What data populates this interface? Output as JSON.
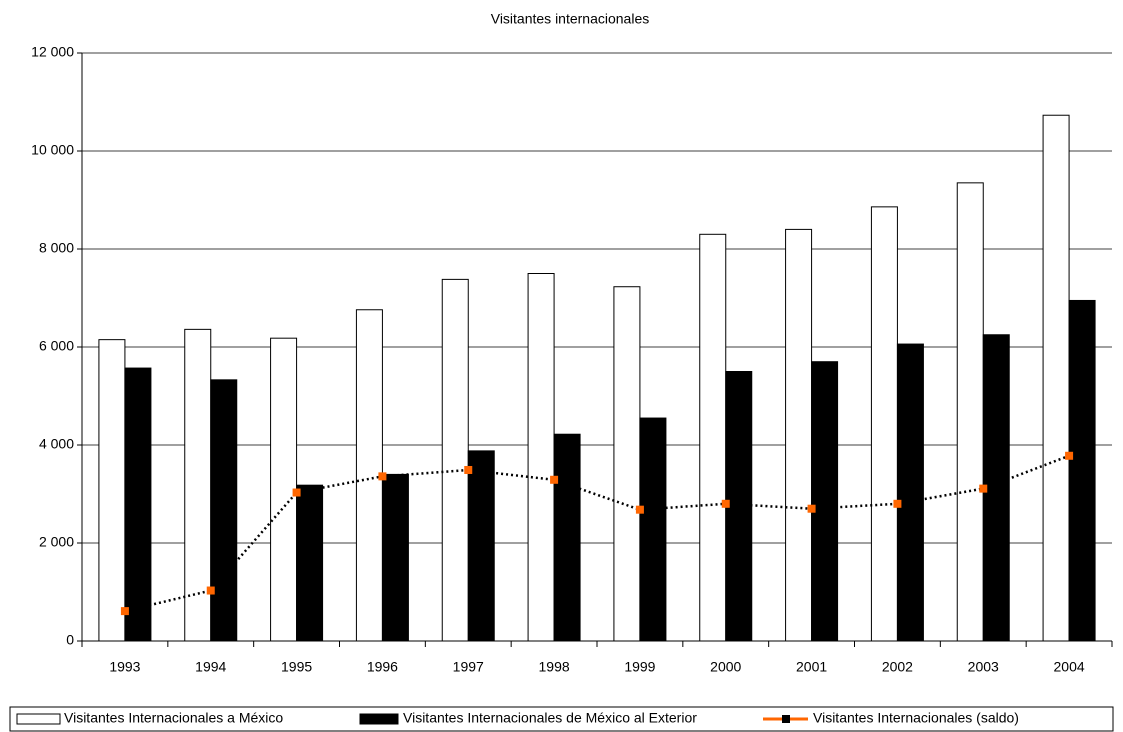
{
  "chart_data": {
    "type": "bar_line",
    "title": "Visitantes internacionales",
    "categories": [
      "1993",
      "1994",
      "1995",
      "1996",
      "1997",
      "1998",
      "1999",
      "2000",
      "2001",
      "2002",
      "2003",
      "2004"
    ],
    "series": [
      {
        "name": "Visitantes Internacionales a México",
        "type": "bar",
        "color": "#ffffff",
        "values": [
          6150,
          6360,
          6180,
          6760,
          7380,
          7500,
          7230,
          8300,
          8400,
          8860,
          9350,
          10730
        ]
      },
      {
        "name": "Visitantes Internacionales de México al Exterior",
        "type": "bar",
        "color": "#000000",
        "values": [
          5570,
          5330,
          3180,
          3400,
          3880,
          4220,
          4550,
          5500,
          5700,
          6060,
          6250,
          6950
        ]
      },
      {
        "name": "Visitantes Internacionales (saldo)",
        "type": "line",
        "color": "#000000",
        "marker_color": "#ff6600",
        "values": [
          610,
          1030,
          3030,
          3360,
          3490,
          3290,
          2680,
          2800,
          2700,
          2800,
          3110,
          3780
        ]
      }
    ],
    "ylim": [
      0,
      12000
    ],
    "yticks": [
      0,
      {
        "value": 2000,
        "label": "2 000"
      },
      {
        "value": 4000,
        "label": "4 000"
      },
      {
        "value": 6000,
        "label": "6 000"
      },
      {
        "value": 8000,
        "label": "8 000"
      },
      {
        "value": 10000,
        "label": "10 000"
      },
      {
        "value": 12000,
        "label": "12 000"
      }
    ],
    "grid": true,
    "legend": "bottom"
  }
}
